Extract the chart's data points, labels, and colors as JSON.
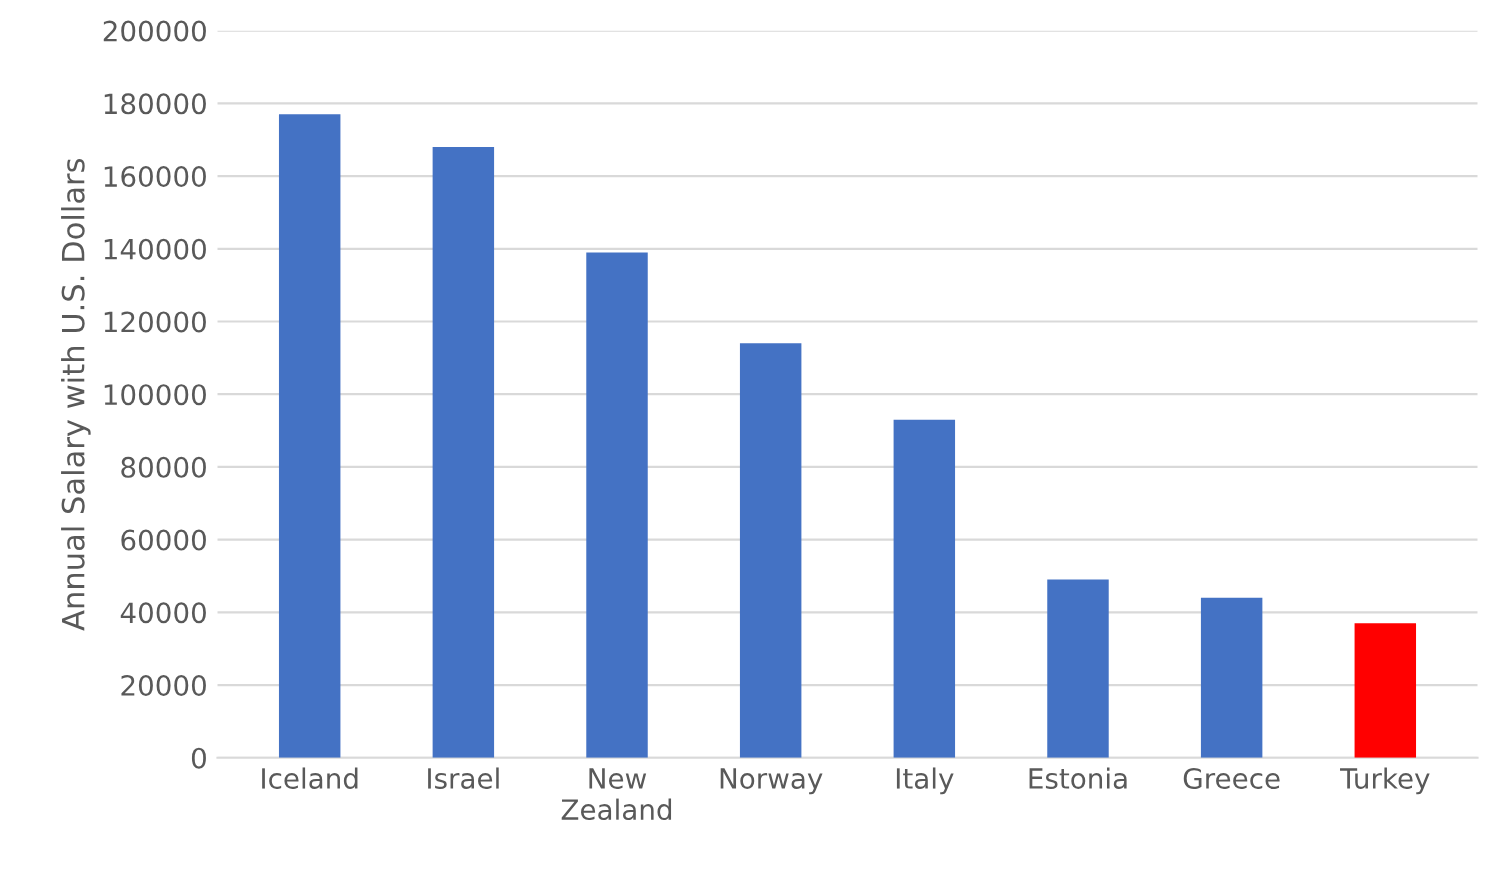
{
  "chart_data": {
    "type": "bar",
    "ylabel": "Annual Salary with U.S. Dollars",
    "categories": [
      "Iceland",
      "Israel",
      "New\nZealand",
      "Norway",
      "Italy",
      "Estonia",
      "Greece",
      "Turkey"
    ],
    "values": [
      177000,
      168000,
      139000,
      114000,
      93000,
      49000,
      44000,
      37000
    ],
    "colors": [
      "#4472c4",
      "#4472c4",
      "#4472c4",
      "#4472c4",
      "#4472c4",
      "#4472c4",
      "#4472c4",
      "#ff0000"
    ],
    "ylim": [
      0,
      200000
    ],
    "yticks": [
      0,
      20000,
      40000,
      60000,
      80000,
      100000,
      120000,
      140000,
      160000,
      180000,
      200000
    ],
    "grid": "y"
  }
}
